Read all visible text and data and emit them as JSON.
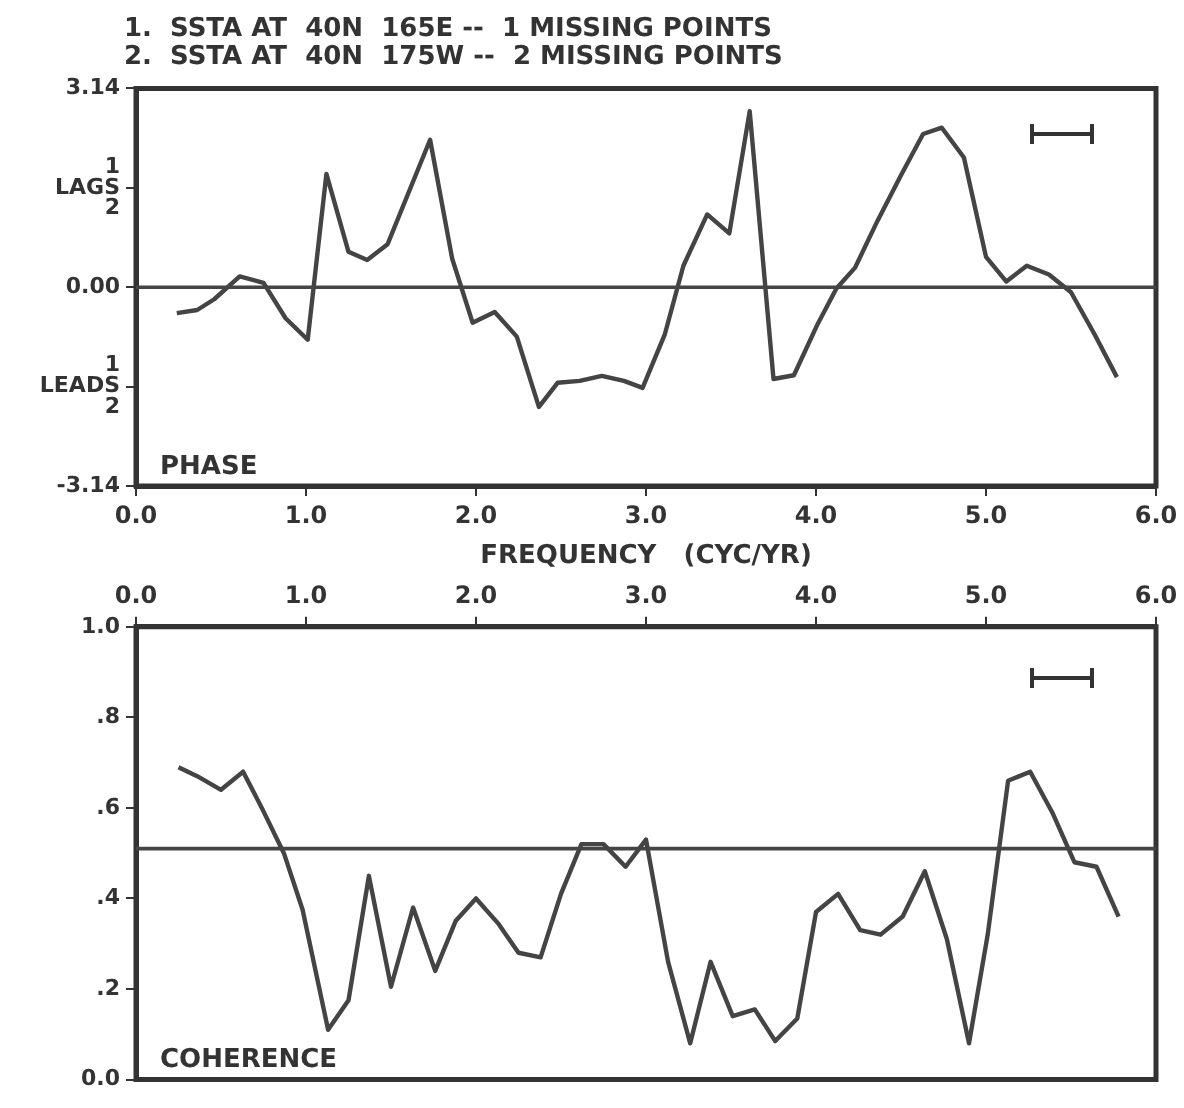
{
  "chart_data": [
    {
      "type": "line",
      "title": "1.  SSTA AT  40N  165E --  1 MISSING POINTS",
      "subtitle": "2.  SSTA AT  40N  175W --  2 MISSING POINTS",
      "xlabel": "FREQUENCY   (CYC/YR)",
      "annotations": [
        "PHASE"
      ],
      "marker": "none",
      "line_style": "solid",
      "xlim": [
        0,
        6
      ],
      "xticks": [
        {
          "value": 0,
          "label": "0.0"
        },
        {
          "value": 1,
          "label": "1.0"
        },
        {
          "value": 2,
          "label": "2.0"
        },
        {
          "value": 3,
          "label": "3.0"
        },
        {
          "value": 4,
          "label": "4.0"
        },
        {
          "value": 5,
          "label": "5.0"
        },
        {
          "value": 6,
          "label": "6.0"
        }
      ],
      "ylim": [
        -3.14,
        3.14
      ],
      "yticks": [
        -3.14,
        {
          "value": -1.57,
          "label": "1\nLEADS\n2"
        },
        {
          "value": 0,
          "label": "0.00"
        },
        {
          "value": 1.57,
          "label": "1\nLAGS\n2"
        },
        3.14
      ],
      "ref_lines": [
        {
          "axis": "y",
          "value": 0,
          "color": "#444444"
        }
      ],
      "series": [
        {
          "color": "#444444",
          "x": [
            0.24,
            0.36,
            0.46,
            0.61,
            0.75,
            0.88,
            1.01,
            1.12,
            1.25,
            1.36,
            1.48,
            1.73,
            1.86,
            1.98,
            2.11,
            2.24,
            2.37,
            2.48,
            2.61,
            2.74,
            2.87,
            2.98,
            3.11,
            3.22,
            3.36,
            3.49,
            3.61,
            3.75,
            3.87,
            4.01,
            4.12,
            4.23,
            4.36,
            4.5,
            4.63,
            4.74,
            4.87,
            5.0,
            5.12,
            5.24,
            5.37,
            5.5,
            5.64,
            5.77
          ],
          "values": [
            -0.41,
            -0.36,
            -0.19,
            0.17,
            0.07,
            -0.49,
            -0.83,
            1.79,
            0.56,
            0.43,
            0.68,
            2.33,
            0.45,
            -0.56,
            -0.39,
            -0.78,
            -1.89,
            -1.51,
            -1.48,
            -1.4,
            -1.48,
            -1.59,
            -0.75,
            0.34,
            1.15,
            0.85,
            2.78,
            -1.45,
            -1.39,
            -0.58,
            -0.02,
            0.31,
            1.04,
            1.77,
            2.42,
            2.52,
            2.05,
            0.48,
            0.09,
            0.34,
            0.2,
            -0.08,
            -0.75,
            -1.42
          ]
        }
      ]
    },
    {
      "type": "line",
      "annotations": [
        "COHERENCE"
      ],
      "marker": "none",
      "line_style": "solid",
      "xlim": [
        0,
        6
      ],
      "xticks": [
        {
          "value": 0,
          "label": "0.0"
        },
        {
          "value": 1,
          "label": "1.0"
        },
        {
          "value": 2,
          "label": "2.0"
        },
        {
          "value": 3,
          "label": "3.0"
        },
        {
          "value": 4,
          "label": "4.0"
        },
        {
          "value": 5,
          "label": "5.0"
        },
        {
          "value": 6,
          "label": "6.0"
        }
      ],
      "ylim": [
        0,
        1
      ],
      "yticks": [
        {
          "value": 0,
          "label": "0.0"
        },
        {
          "value": 0.2,
          "label": ".2"
        },
        {
          "value": 0.4,
          "label": ".4"
        },
        {
          "value": 0.6,
          "label": ".6"
        },
        {
          "value": 0.8,
          "label": ".8"
        },
        {
          "value": 1,
          "label": "1.0"
        }
      ],
      "ref_lines": [
        {
          "axis": "y",
          "value": 0.51,
          "color": "#444444"
        }
      ],
      "series": [
        {
          "color": "#444444",
          "x": [
            0.25,
            0.36,
            0.5,
            0.63,
            0.74,
            0.87,
            0.98,
            1.13,
            1.25,
            1.37,
            1.5,
            1.63,
            1.76,
            1.88,
            2.0,
            2.13,
            2.25,
            2.38,
            2.5,
            2.62,
            2.75,
            2.88,
            3.0,
            3.13,
            3.26,
            3.38,
            3.51,
            3.64,
            3.76,
            3.89,
            4.0,
            4.13,
            4.26,
            4.38,
            4.51,
            4.64,
            4.77,
            4.9,
            5.01,
            5.13,
            5.26,
            5.39,
            5.52,
            5.65,
            5.78
          ],
          "values": [
            0.69,
            0.67,
            0.64,
            0.68,
            0.6,
            0.5,
            0.375,
            0.11,
            0.175,
            0.45,
            0.205,
            0.38,
            0.24,
            0.35,
            0.4,
            0.345,
            0.28,
            0.27,
            0.41,
            0.52,
            0.52,
            0.47,
            0.53,
            0.26,
            0.08,
            0.26,
            0.14,
            0.155,
            0.085,
            0.135,
            0.37,
            0.41,
            0.33,
            0.32,
            0.36,
            0.46,
            0.31,
            0.08,
            0.32,
            0.66,
            0.68,
            0.59,
            0.48,
            0.47,
            0.36
          ]
        }
      ]
    }
  ]
}
